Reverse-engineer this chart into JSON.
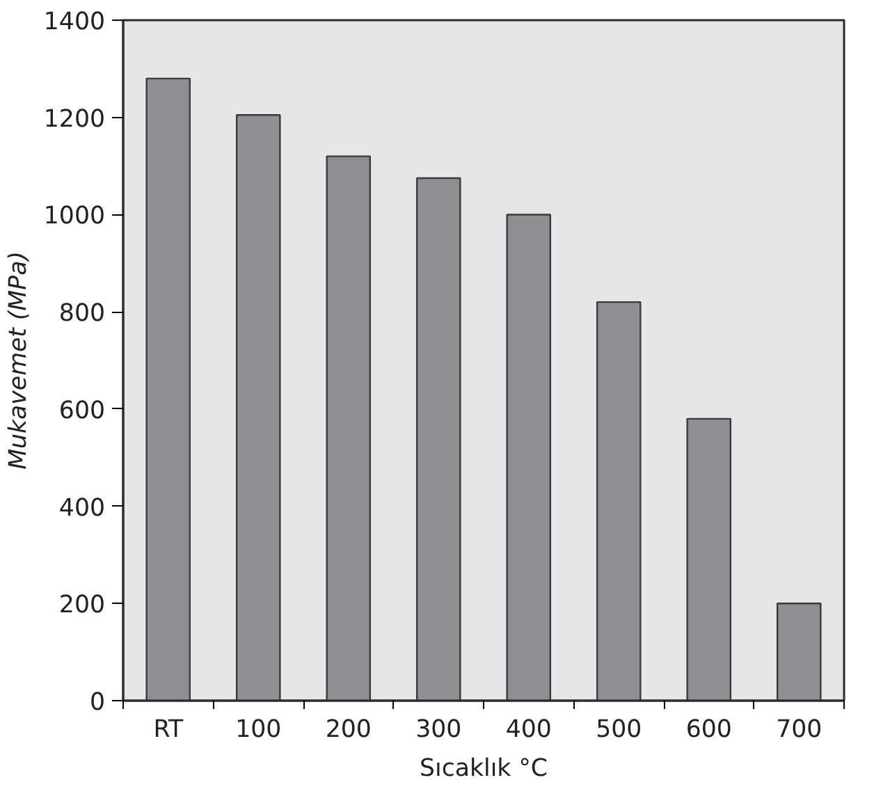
{
  "chart_data": {
    "type": "bar",
    "xlabel": "Sıcaklık °C",
    "ylabel": "Mukavemet (MPa)",
    "categories": [
      "RT",
      "100",
      "200",
      "300",
      "400",
      "500",
      "600",
      "700"
    ],
    "values": [
      1280,
      1205,
      1120,
      1075,
      1000,
      820,
      580,
      200
    ],
    "color": "#8e8f93",
    "ylim": [
      0,
      1400
    ],
    "yticks": [
      0,
      200,
      400,
      600,
      800,
      1000,
      1200,
      1400
    ],
    "grid": false
  }
}
